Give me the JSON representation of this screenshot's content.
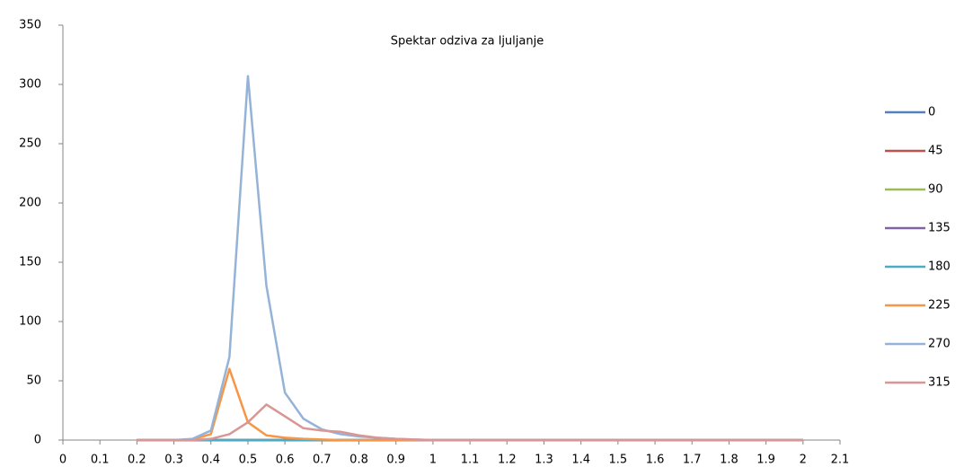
{
  "chart_data": {
    "type": "line",
    "title": "Spektar odziva za ljuljanje",
    "x": [
      0.2,
      0.25,
      0.3,
      0.35,
      0.4,
      0.45,
      0.5,
      0.55,
      0.6,
      0.65,
      0.7,
      0.75,
      0.8,
      0.85,
      0.9,
      0.95,
      1,
      1.05,
      1.1,
      1.15,
      1.2,
      1.25,
      1.3,
      1.35,
      1.4,
      1.45,
      1.5,
      1.55,
      1.6,
      1.65,
      1.7,
      1.75,
      1.8,
      1.85,
      1.9,
      1.95,
      2
    ],
    "series": [
      {
        "name": "0",
        "color": "#4f81bd",
        "values": [
          0,
          0,
          0,
          0,
          0,
          0,
          0,
          0,
          0,
          0,
          0,
          0,
          0,
          0,
          0,
          0,
          0,
          0,
          0,
          0,
          0,
          0,
          0,
          0,
          0,
          0,
          0,
          0,
          0,
          0,
          0,
          0,
          0,
          0,
          0,
          0,
          0
        ]
      },
      {
        "name": "45",
        "color": "#c0504d",
        "values": [
          0,
          0,
          0,
          0,
          0,
          0,
          0,
          0,
          0,
          0,
          0,
          0,
          0,
          0,
          0,
          0,
          0,
          0,
          0,
          0,
          0,
          0,
          0,
          0,
          0,
          0,
          0,
          0,
          0,
          0,
          0,
          0,
          0,
          0,
          0,
          0,
          0
        ]
      },
      {
        "name": "90",
        "color": "#9bbb59",
        "values": [
          0,
          0,
          0,
          0,
          0,
          0,
          0,
          0,
          0,
          0,
          0,
          0,
          0,
          0,
          0,
          0,
          0,
          0,
          0,
          0,
          0,
          0,
          0,
          0,
          0,
          0,
          0,
          0,
          0,
          0,
          0,
          0,
          0,
          0,
          0,
          0,
          0
        ]
      },
      {
        "name": "135",
        "color": "#8064a2",
        "values": [
          0,
          0,
          0,
          0,
          0,
          0,
          0,
          0,
          0,
          0,
          0,
          0,
          0,
          0,
          0,
          0,
          0,
          0,
          0,
          0,
          0,
          0,
          0,
          0,
          0,
          0,
          0,
          0,
          0,
          0,
          0,
          0,
          0,
          0,
          0,
          0,
          0
        ]
      },
      {
        "name": "180",
        "color": "#4bacc6",
        "values": [
          0,
          0,
          0,
          0,
          0,
          0,
          0,
          0,
          0,
          0,
          0,
          0,
          0,
          0,
          0,
          0,
          0,
          0,
          0,
          0,
          0,
          0,
          0,
          0,
          0,
          0,
          0,
          0,
          0,
          0,
          0,
          0,
          0,
          0,
          0,
          0,
          0
        ]
      },
      {
        "name": "225",
        "color": "#f79646",
        "values": [
          0,
          0,
          0,
          0.5,
          5,
          60,
          15,
          4,
          2,
          1,
          0.5,
          0,
          0,
          0,
          0,
          0,
          0,
          0,
          0,
          0,
          0,
          0,
          0,
          0,
          0,
          0,
          0,
          0,
          0,
          0,
          0,
          0,
          0,
          0,
          0,
          0,
          0
        ]
      },
      {
        "name": "270",
        "color": "#95b3d7",
        "values": [
          0,
          0,
          0,
          1,
          8,
          70,
          307,
          130,
          40,
          18,
          9,
          5,
          3,
          2,
          1,
          0.5,
          0,
          0,
          0,
          0,
          0,
          0,
          0,
          0,
          0,
          0,
          0,
          0,
          0,
          0,
          0,
          0,
          0,
          0,
          0,
          0,
          0
        ]
      },
      {
        "name": "315",
        "color": "#d99694",
        "values": [
          0,
          0,
          0,
          0,
          1,
          5,
          15,
          30,
          20,
          10,
          8,
          7,
          4,
          2,
          1,
          0.5,
          0,
          0,
          0,
          0,
          0,
          0,
          0,
          0,
          0,
          0,
          0,
          0,
          0,
          0,
          0,
          0,
          0,
          0,
          0,
          0,
          0
        ]
      }
    ],
    "xlim": [
      0,
      2.1
    ],
    "xticks": [
      0,
      0.1,
      0.2,
      0.3,
      0.4,
      0.5,
      0.6,
      0.7,
      0.8,
      0.9,
      1,
      1.1,
      1.2,
      1.3,
      1.4,
      1.5,
      1.6,
      1.7,
      1.8,
      1.9,
      2,
      2.1
    ],
    "ylim": [
      0,
      350
    ],
    "yticks": [
      0,
      50,
      100,
      150,
      200,
      250,
      300,
      350
    ],
    "grid": false,
    "legend": "right"
  }
}
